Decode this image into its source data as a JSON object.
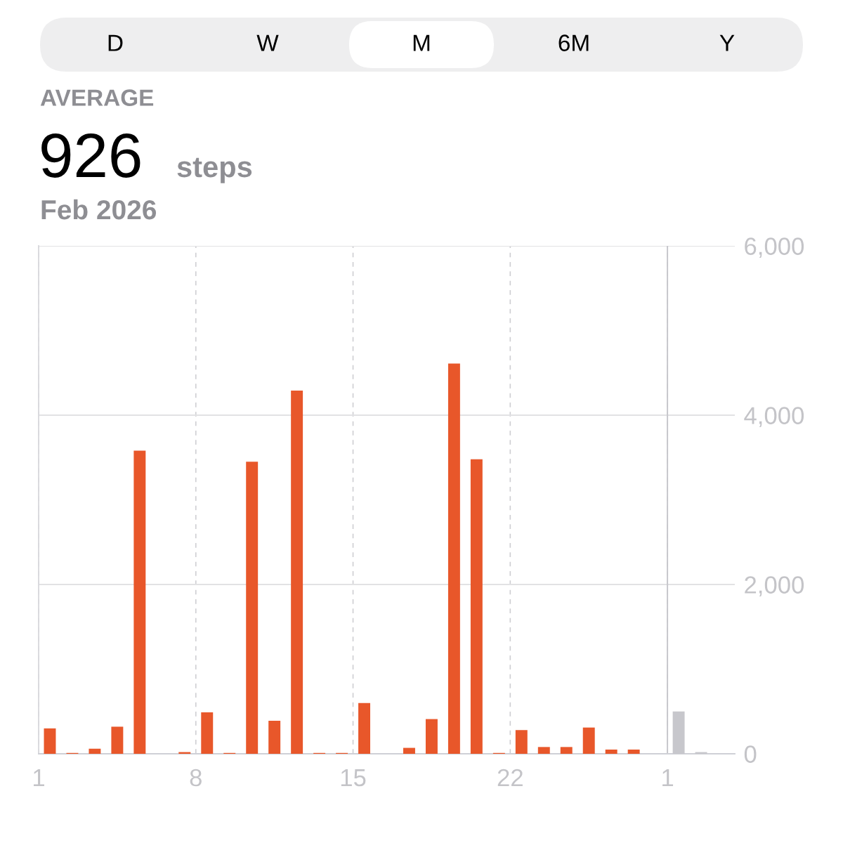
{
  "chart_data": {
    "type": "bar",
    "annotations": [
      "D",
      "W",
      "M",
      "6M",
      "Y",
      "AVERAGE",
      "926",
      "steps",
      "Feb 2026"
    ],
    "x": [
      "2026-02-01T12:00",
      "2026-02-02T12:00",
      "2026-02-03T12:00",
      "2026-02-04T12:00",
      "2026-02-05T12:00",
      "2026-02-06T12:00",
      "2026-02-07T12:00",
      "2026-02-08T12:00",
      "2026-02-09T12:00",
      "2026-02-10T12:00",
      "2026-02-11T12:00",
      "2026-02-12T12:00",
      "2026-02-13T12:00",
      "2026-02-14T12:00",
      "2026-02-15T12:00",
      "2026-02-16T12:00",
      "2026-02-17T12:00",
      "2026-02-18T12:00",
      "2026-02-19T12:00",
      "2026-02-20T12:00",
      "2026-02-21T12:00",
      "2026-02-22T12:00",
      "2026-02-23T12:00",
      "2026-02-24T12:00",
      "2026-02-25T12:00",
      "2026-02-26T12:00",
      "2026-02-27T12:00",
      "2026-02-28T12:00",
      "2026-03-01T12:00",
      "2026-03-02T12:00"
    ],
    "values": [
      300,
      10,
      60,
      320,
      3580,
      null,
      20,
      490,
      10,
      3450,
      390,
      4290,
      10,
      10,
      600,
      null,
      70,
      410,
      4610,
      3480,
      10,
      280,
      80,
      80,
      310,
      50,
      50,
      null,
      500,
      20
    ],
    "colors": [
      "#e8572a",
      "#e8572a",
      "#e8572a",
      "#e8572a",
      "#e8572a",
      "#e8572a",
      "#e8572a",
      "#e8572a",
      "#e8572a",
      "#e8572a",
      "#e8572a",
      "#e8572a",
      "#e8572a",
      "#e8572a",
      "#e8572a",
      "#e8572a",
      "#e8572a",
      "#e8572a",
      "#e8572a",
      "#e8572a",
      "#e8572a",
      "#e8572a",
      "#e8572a",
      "#e8572a",
      "#e8572a",
      "#e8572a",
      "#e8572a",
      "#e8572a",
      "#c7c7cc",
      "#c7c7cc"
    ],
    "xlim": [
      "2026-02-01",
      "2026-03-04"
    ],
    "xticks": [
      {
        "value": "2026-02-01",
        "label": "1"
      },
      {
        "value": "2026-02-08",
        "label": "8"
      },
      {
        "value": "2026-02-15",
        "label": "15"
      },
      {
        "value": "2026-02-22",
        "label": "22"
      },
      {
        "value": "2026-03-01",
        "label": "1"
      }
    ],
    "ylim": [
      0,
      6000
    ],
    "yticks": [
      0,
      {
        "value": 2000,
        "label": "2,000"
      },
      {
        "value": 4000,
        "label": "4,000"
      },
      {
        "value": 6000,
        "label": "6,000"
      }
    ],
    "grid": true,
    "ref_lines": [
      {
        "axis": "x",
        "value": "2026-03-01",
        "color": "#c7c7cc",
        "line_style": "solid"
      }
    ]
  }
}
